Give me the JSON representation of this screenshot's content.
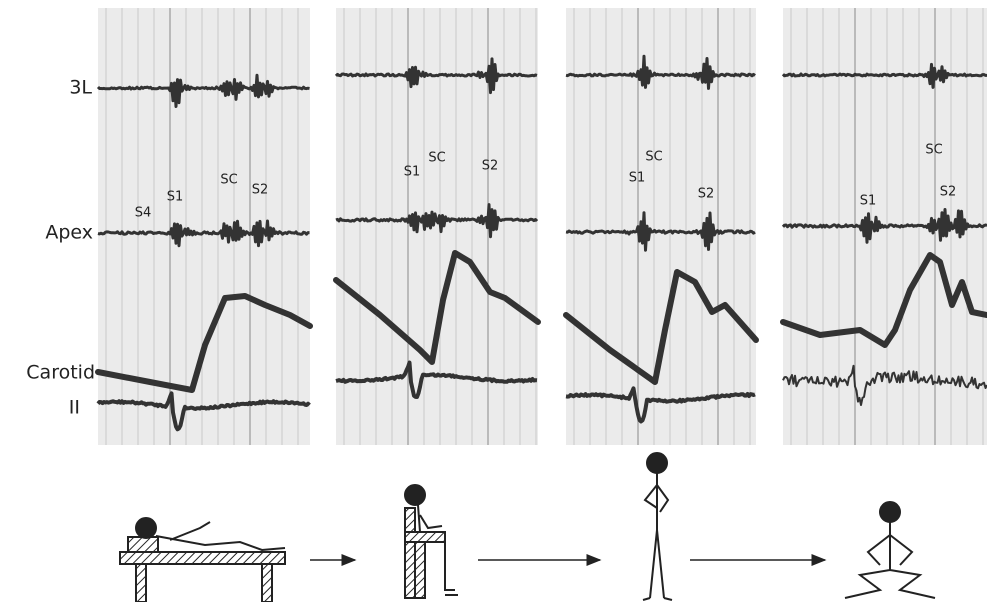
{
  "rows": [
    "3L",
    "Apex",
    "Carotid",
    "II"
  ],
  "panels": [
    {
      "labels": [
        "S4",
        "S1",
        "SC",
        "S2"
      ]
    },
    {
      "labels": [
        "S1",
        "SC",
        "S2"
      ]
    },
    {
      "labels": [
        "SC",
        "S1",
        "S2"
      ]
    },
    {
      "labels": [
        "SC",
        "S1",
        "S2"
      ]
    }
  ]
}
